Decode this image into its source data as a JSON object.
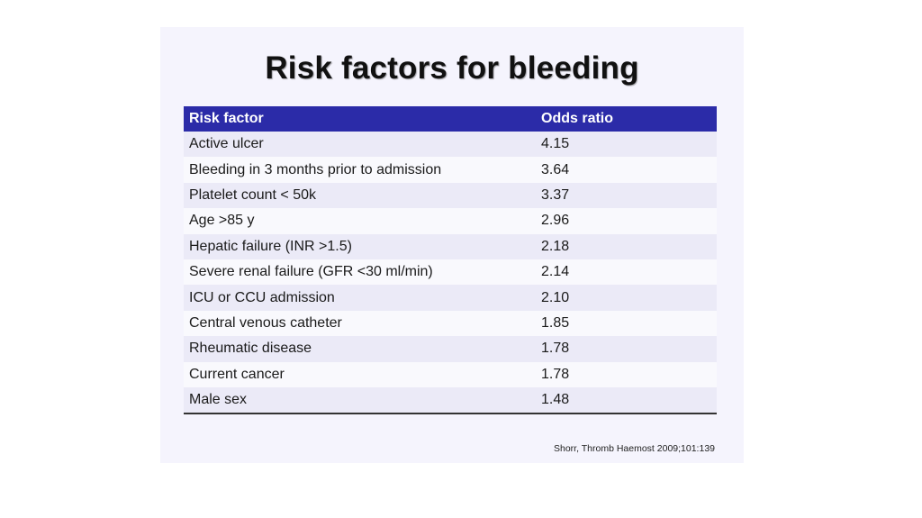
{
  "title": "Risk factors for bleeding",
  "table": {
    "headers": {
      "factor": "Risk factor",
      "odds_ratio": "Odds ratio"
    },
    "rows": [
      {
        "factor": "Active ulcer",
        "odds_ratio": "4.15"
      },
      {
        "factor": "Bleeding in 3 months prior to admission",
        "odds_ratio": "3.64"
      },
      {
        "factor": "Platelet count < 50k",
        "odds_ratio": "3.37"
      },
      {
        "factor": "Age >85 y",
        "odds_ratio": "2.96"
      },
      {
        "factor": "Hepatic failure (INR >1.5)",
        "odds_ratio": "2.18"
      },
      {
        "factor": "Severe renal failure (GFR <30 ml/min)",
        "odds_ratio": "2.14"
      },
      {
        "factor": "ICU or CCU admission",
        "odds_ratio": "2.10"
      },
      {
        "factor": "Central venous catheter",
        "odds_ratio": "1.85"
      },
      {
        "factor": "Rheumatic disease",
        "odds_ratio": "1.78"
      },
      {
        "factor": "Current cancer",
        "odds_ratio": "1.78"
      },
      {
        "factor": "Male sex",
        "odds_ratio": "1.48"
      }
    ]
  },
  "citation": "Shorr, Thromb Haemost 2009;101:139",
  "colors": {
    "header_bg": "#2b2ba8",
    "slide_bg": "#f5f4fd"
  }
}
